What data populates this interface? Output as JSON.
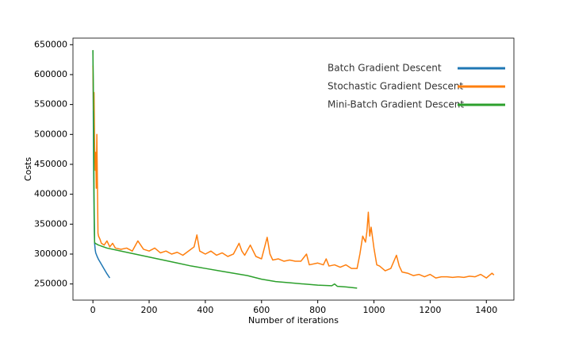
{
  "chart_data": {
    "type": "line",
    "xlabel": "Number of iterations",
    "ylabel": "Costs",
    "xlim": [
      -71,
      1498
    ],
    "ylim": [
      223000,
      661000
    ],
    "xticks": [
      0,
      200,
      400,
      600,
      800,
      1000,
      1200,
      1400
    ],
    "yticks": [
      250000,
      300000,
      350000,
      400000,
      450000,
      500000,
      550000,
      600000,
      650000
    ],
    "legend": "upper right",
    "series": [
      {
        "name": "Batch Gradient Descent",
        "color": "#1f77b4",
        "x": [
          0,
          1,
          2,
          3,
          4,
          5,
          6,
          8,
          10,
          15,
          20,
          30,
          40,
          50,
          60
        ],
        "values": [
          640000,
          560000,
          480000,
          420000,
          370000,
          340000,
          318000,
          308000,
          302000,
          296000,
          291000,
          283000,
          275000,
          267000,
          260000
        ]
      },
      {
        "name": "Stochastic Gradient Descent",
        "color": "#ff7f0e",
        "x": [
          0,
          2,
          4,
          6,
          8,
          10,
          12,
          14,
          16,
          18,
          20,
          25,
          30,
          40,
          50,
          60,
          70,
          80,
          100,
          120,
          140,
          160,
          180,
          200,
          220,
          240,
          260,
          280,
          300,
          320,
          340,
          360,
          370,
          380,
          400,
          420,
          440,
          460,
          480,
          500,
          520,
          530,
          540,
          560,
          580,
          600,
          620,
          630,
          640,
          660,
          680,
          700,
          720,
          740,
          760,
          770,
          800,
          820,
          830,
          840,
          860,
          880,
          900,
          920,
          940,
          950,
          960,
          970,
          975,
          980,
          985,
          990,
          1000,
          1010,
          1020,
          1040,
          1060,
          1080,
          1090,
          1100,
          1120,
          1140,
          1160,
          1180,
          1200,
          1220,
          1240,
          1260,
          1280,
          1300,
          1320,
          1340,
          1360,
          1380,
          1400,
          1420,
          1427
        ],
        "values": [
          615000,
          540000,
          570000,
          480000,
          440000,
          470000,
          410000,
          500000,
          420000,
          335000,
          330000,
          325000,
          318000,
          315000,
          322000,
          312000,
          318000,
          310000,
          308000,
          310000,
          305000,
          322000,
          308000,
          305000,
          310000,
          302000,
          305000,
          300000,
          303000,
          298000,
          305000,
          312000,
          332000,
          305000,
          300000,
          305000,
          298000,
          302000,
          296000,
          300000,
          318000,
          305000,
          298000,
          315000,
          296000,
          292000,
          328000,
          300000,
          290000,
          292000,
          288000,
          290000,
          288000,
          288000,
          300000,
          282000,
          285000,
          282000,
          292000,
          280000,
          282000,
          278000,
          282000,
          276000,
          276000,
          300000,
          330000,
          320000,
          338000,
          370000,
          330000,
          345000,
          310000,
          282000,
          280000,
          272000,
          276000,
          298000,
          280000,
          270000,
          268000,
          264000,
          266000,
          262000,
          266000,
          260000,
          262000,
          262000,
          261000,
          262000,
          261000,
          263000,
          262000,
          266000,
          260000,
          268000,
          265000
        ]
      },
      {
        "name": "Mini-Batch Gradient Descent",
        "color": "#2ca02c",
        "x": [
          0,
          2,
          4,
          6,
          8,
          20,
          50,
          100,
          150,
          200,
          250,
          300,
          350,
          400,
          450,
          500,
          550,
          600,
          650,
          700,
          750,
          800,
          850,
          860,
          870,
          900,
          940
        ],
        "values": [
          641000,
          560000,
          400000,
          320000,
          318000,
          315000,
          310000,
          305000,
          300000,
          295000,
          290000,
          285000,
          280000,
          276000,
          272000,
          268000,
          264000,
          258000,
          254000,
          252000,
          250000,
          248000,
          247000,
          250000,
          246000,
          245000,
          243000
        ]
      }
    ]
  }
}
